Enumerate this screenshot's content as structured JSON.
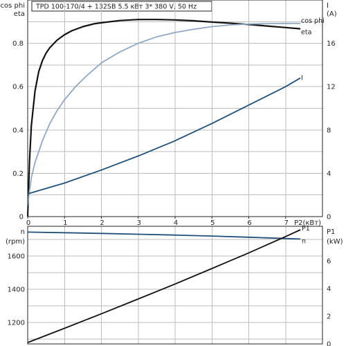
{
  "header": {
    "text": "TPD 100-170/4 + 132SB    5.5 кВт    3* 380 V, 50 Hz"
  },
  "chart_data": [
    {
      "type": "line",
      "title": "",
      "x_label": "P2(кВт)",
      "xlim": [
        0,
        8
      ],
      "x_ticks": [
        "0",
        "1",
        "2",
        "3",
        "4",
        "5",
        "6",
        "7"
      ],
      "y_left_label_lines": [
        "cos phi",
        "eta"
      ],
      "ylim_left": [
        0,
        1
      ],
      "y_left_ticks": [
        "0",
        "0.2",
        "0.4",
        "0.6",
        "0.8"
      ],
      "y_right_label_lines": [
        "I",
        "(A)"
      ],
      "ylim_right": [
        0,
        20
      ],
      "y_right_ticks": [
        "0",
        "4",
        "8",
        "12",
        "16"
      ],
      "grid": true,
      "series": [
        {
          "name": "eta",
          "axis": "left",
          "color": "#111111",
          "x": [
            0,
            0.05,
            0.1,
            0.2,
            0.3,
            0.4,
            0.5,
            0.6,
            0.8,
            1.0,
            1.2,
            1.5,
            1.8,
            2.0,
            2.5,
            3.0,
            3.5,
            4.0,
            4.5,
            5.0,
            5.5,
            6.0,
            6.5,
            7.0,
            7.4
          ],
          "y": [
            0.0,
            0.26,
            0.42,
            0.58,
            0.67,
            0.72,
            0.755,
            0.78,
            0.815,
            0.84,
            0.858,
            0.877,
            0.89,
            0.895,
            0.905,
            0.91,
            0.91,
            0.908,
            0.904,
            0.898,
            0.893,
            0.887,
            0.88,
            0.873,
            0.867
          ]
        },
        {
          "name": "cos phi",
          "axis": "left",
          "color": "#8fa8c6",
          "x": [
            0,
            0.05,
            0.1,
            0.2,
            0.4,
            0.6,
            0.8,
            1.0,
            1.3,
            1.6,
            2.0,
            2.5,
            3.0,
            3.5,
            4.0,
            4.5,
            5.0,
            5.5,
            6.0,
            6.5,
            7.0,
            7.4
          ],
          "y": [
            0.05,
            0.12,
            0.18,
            0.25,
            0.35,
            0.43,
            0.49,
            0.54,
            0.6,
            0.65,
            0.71,
            0.76,
            0.8,
            0.83,
            0.85,
            0.865,
            0.877,
            0.885,
            0.889,
            0.891,
            0.892,
            0.892
          ]
        },
        {
          "name": "I",
          "axis": "right",
          "color": "#1f4f7a",
          "x": [
            0,
            1,
            2,
            3,
            4,
            5,
            6,
            7,
            7.4
          ],
          "y": [
            2.1,
            3.1,
            4.3,
            5.6,
            7.0,
            8.6,
            10.3,
            12.0,
            12.8
          ]
        }
      ]
    },
    {
      "type": "line",
      "title": "",
      "x_label": "",
      "xlim": [
        0,
        8
      ],
      "y_left_label_lines": [
        "n",
        "(rpm)"
      ],
      "ylim_left": [
        1070,
        1780
      ],
      "y_left_ticks": [
        "1200",
        "1400",
        "1600"
      ],
      "y_left_tick_values": [
        1200,
        1400,
        1600
      ],
      "y_right_label_lines": [
        "P1",
        "(kW)"
      ],
      "ylim_right": [
        0,
        8.5
      ],
      "y_right_ticks": [
        "0",
        "2",
        "4",
        "6"
      ],
      "y_right_tick_values": [
        0,
        2,
        4,
        6
      ],
      "grid": true,
      "series": [
        {
          "name": "n",
          "axis": "left",
          "color": "#1f4f7a",
          "x": [
            0,
            1,
            2,
            3,
            4,
            5,
            6,
            7,
            7.4
          ],
          "y": [
            1745,
            1741,
            1737,
            1732,
            1727,
            1721,
            1714,
            1706,
            1703
          ]
        },
        {
          "name": "P1",
          "axis": "right",
          "color": "#111111",
          "x": [
            0,
            1,
            2,
            3,
            4,
            5,
            6,
            7,
            7.4
          ],
          "y": [
            0.1,
            1.13,
            2.18,
            3.25,
            4.33,
            5.45,
            6.58,
            7.76,
            8.25
          ]
        }
      ]
    }
  ]
}
